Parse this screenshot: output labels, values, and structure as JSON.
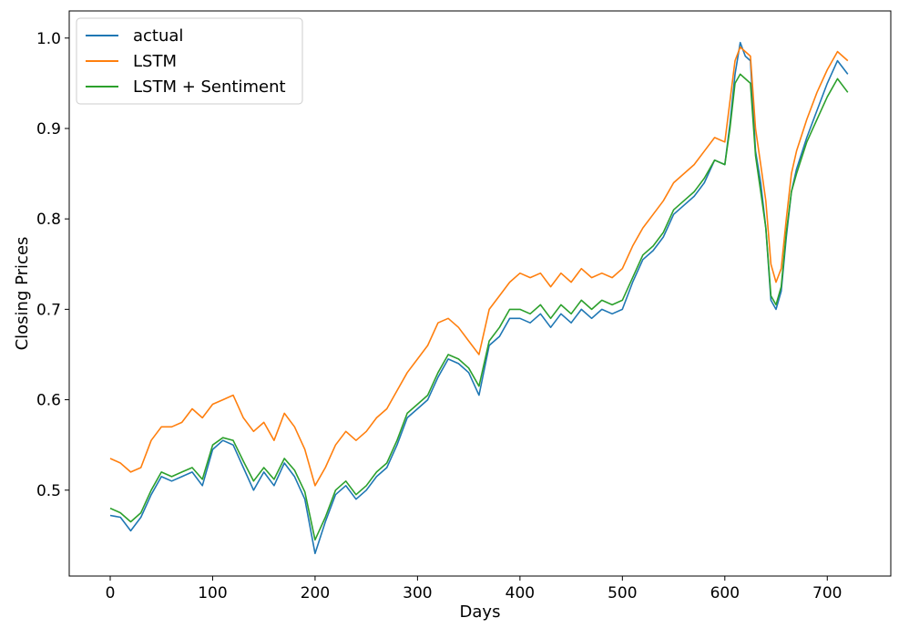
{
  "chart_data": {
    "type": "line",
    "xlabel": "Days",
    "ylabel": "Closing Prices",
    "xlim": [
      -40,
      762
    ],
    "ylim": [
      0.405,
      1.03
    ],
    "xticks": [
      0,
      100,
      200,
      300,
      400,
      500,
      600,
      700
    ],
    "yticks": [
      0.5,
      0.6,
      0.7,
      0.8,
      0.9,
      1.0
    ],
    "ytick_labels": [
      "0.5",
      "0.6",
      "0.7",
      "0.8",
      "0.9",
      "1.0"
    ],
    "grid": false,
    "legend_position": "top-left",
    "x": [
      0,
      10,
      20,
      30,
      40,
      50,
      60,
      70,
      80,
      90,
      100,
      110,
      120,
      130,
      140,
      150,
      160,
      170,
      180,
      190,
      200,
      210,
      220,
      230,
      240,
      250,
      260,
      270,
      280,
      290,
      300,
      310,
      320,
      330,
      340,
      350,
      360,
      370,
      380,
      390,
      400,
      410,
      420,
      430,
      440,
      450,
      460,
      470,
      480,
      490,
      500,
      510,
      520,
      530,
      540,
      550,
      560,
      570,
      580,
      590,
      600,
      605,
      610,
      615,
      620,
      625,
      630,
      635,
      640,
      645,
      650,
      655,
      660,
      665,
      670,
      680,
      690,
      700,
      710,
      720
    ],
    "series": [
      {
        "name": "actual",
        "color": "#1f77b4",
        "values": [
          0.472,
          0.47,
          0.455,
          0.47,
          0.495,
          0.515,
          0.51,
          0.515,
          0.52,
          0.505,
          0.545,
          0.555,
          0.55,
          0.525,
          0.5,
          0.52,
          0.505,
          0.53,
          0.515,
          0.49,
          0.43,
          0.465,
          0.495,
          0.505,
          0.49,
          0.5,
          0.515,
          0.525,
          0.55,
          0.58,
          0.59,
          0.6,
          0.625,
          0.645,
          0.64,
          0.63,
          0.605,
          0.66,
          0.67,
          0.69,
          0.69,
          0.685,
          0.695,
          0.68,
          0.695,
          0.685,
          0.7,
          0.69,
          0.7,
          0.695,
          0.7,
          0.73,
          0.755,
          0.765,
          0.78,
          0.805,
          0.815,
          0.825,
          0.84,
          0.865,
          0.86,
          0.905,
          0.96,
          0.995,
          0.98,
          0.975,
          0.875,
          0.84,
          0.79,
          0.71,
          0.7,
          0.72,
          0.78,
          0.83,
          0.855,
          0.89,
          0.92,
          0.95,
          0.975,
          0.96
        ]
      },
      {
        "name": "LSTM",
        "color": "#ff7f0e",
        "values": [
          0.535,
          0.53,
          0.52,
          0.525,
          0.555,
          0.57,
          0.57,
          0.575,
          0.59,
          0.58,
          0.595,
          0.6,
          0.605,
          0.58,
          0.565,
          0.575,
          0.555,
          0.585,
          0.57,
          0.545,
          0.505,
          0.525,
          0.55,
          0.565,
          0.555,
          0.565,
          0.58,
          0.59,
          0.61,
          0.63,
          0.645,
          0.66,
          0.685,
          0.69,
          0.68,
          0.665,
          0.65,
          0.7,
          0.715,
          0.73,
          0.74,
          0.735,
          0.74,
          0.725,
          0.74,
          0.73,
          0.745,
          0.735,
          0.74,
          0.735,
          0.745,
          0.77,
          0.79,
          0.805,
          0.82,
          0.84,
          0.85,
          0.86,
          0.875,
          0.89,
          0.885,
          0.93,
          0.975,
          0.99,
          0.985,
          0.98,
          0.9,
          0.86,
          0.82,
          0.75,
          0.73,
          0.745,
          0.8,
          0.85,
          0.875,
          0.91,
          0.94,
          0.965,
          0.985,
          0.975
        ]
      },
      {
        "name": "LSTM + Sentiment",
        "color": "#2ca02c",
        "values": [
          0.48,
          0.475,
          0.465,
          0.475,
          0.5,
          0.52,
          0.515,
          0.52,
          0.525,
          0.512,
          0.55,
          0.558,
          0.555,
          0.532,
          0.51,
          0.525,
          0.512,
          0.535,
          0.522,
          0.498,
          0.445,
          0.47,
          0.5,
          0.51,
          0.495,
          0.505,
          0.52,
          0.53,
          0.555,
          0.585,
          0.595,
          0.605,
          0.63,
          0.65,
          0.645,
          0.635,
          0.615,
          0.665,
          0.68,
          0.7,
          0.7,
          0.695,
          0.705,
          0.69,
          0.705,
          0.695,
          0.71,
          0.7,
          0.71,
          0.705,
          0.71,
          0.735,
          0.76,
          0.77,
          0.785,
          0.81,
          0.82,
          0.83,
          0.845,
          0.865,
          0.86,
          0.9,
          0.95,
          0.96,
          0.955,
          0.95,
          0.87,
          0.83,
          0.79,
          0.715,
          0.705,
          0.725,
          0.785,
          0.83,
          0.85,
          0.885,
          0.91,
          0.935,
          0.955,
          0.94
        ]
      }
    ]
  }
}
